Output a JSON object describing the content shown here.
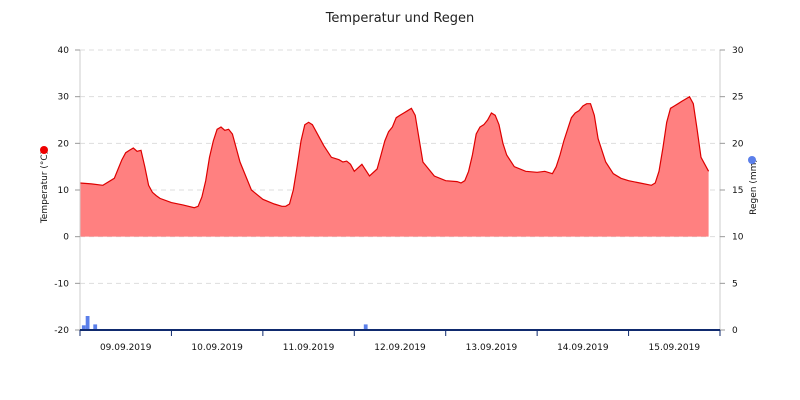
{
  "chart_data": {
    "type": "area",
    "title": "Temperatur und Regen",
    "y_left": {
      "label": "Temperatur (°C)",
      "min": -20,
      "max": 40,
      "ticks": [
        -20,
        -10,
        0,
        10,
        20,
        30,
        40
      ]
    },
    "y_right": {
      "label": "Regen (mm)",
      "min": 0,
      "max": 30,
      "ticks": [
        0,
        5,
        10,
        15,
        20,
        25,
        30
      ]
    },
    "x_ticks": [
      "09.09.2019",
      "10.09.2019",
      "11.09.2019",
      "12.09.2019",
      "13.09.2019",
      "14.09.2019",
      "15.09.2019"
    ],
    "grid": true,
    "colors": {
      "temperature_fill": "#ff8080",
      "temperature_line": "#dd0000",
      "temperature_marker": "#ee0000",
      "rain": "#5b7fea",
      "rain_marker": "#5b7fea",
      "axis": "#0f2a6e"
    },
    "series": [
      {
        "name": "Temperatur",
        "unit": "°C",
        "axis": "left",
        "hours": [
          0,
          3,
          6,
          9,
          10,
          11,
          12,
          13,
          14,
          15,
          16,
          17,
          18,
          19,
          20,
          21,
          24,
          27,
          30,
          31,
          32,
          33,
          34,
          35,
          36,
          37,
          38,
          39,
          40,
          42,
          45,
          48,
          51,
          53,
          54,
          55,
          56,
          57,
          58,
          59,
          60,
          61,
          62,
          63,
          64,
          66,
          68,
          69,
          70,
          71,
          72,
          74,
          76,
          78,
          79,
          80,
          81,
          82,
          83,
          84,
          85,
          86,
          87,
          88,
          90,
          93,
          96,
          99,
          100,
          101,
          102,
          103,
          104,
          105,
          106,
          107,
          108,
          109,
          110,
          111,
          112,
          114,
          117,
          120,
          122,
          124,
          125,
          126,
          127,
          128,
          129,
          130,
          131,
          132,
          133,
          134,
          135,
          136,
          138,
          140,
          142,
          144,
          147,
          150,
          151,
          152,
          153,
          154,
          155,
          156,
          157,
          158,
          159,
          160,
          161,
          162,
          163,
          165
        ],
        "values": [
          11.5,
          11.3,
          11.0,
          12.5,
          14.5,
          16.5,
          18.0,
          18.5,
          19.0,
          18.3,
          18.5,
          15.0,
          11.0,
          9.5,
          8.8,
          8.2,
          7.3,
          6.8,
          6.2,
          6.5,
          8.5,
          12.0,
          17.0,
          20.5,
          23.0,
          23.5,
          22.8,
          23.0,
          22.0,
          16.0,
          10.0,
          8.0,
          7.0,
          6.5,
          6.5,
          7.0,
          10.0,
          15.0,
          20.5,
          24.0,
          24.5,
          24.0,
          22.5,
          21.0,
          19.5,
          17.0,
          16.5,
          16.0,
          16.2,
          15.5,
          14.0,
          15.5,
          13.0,
          14.5,
          17.5,
          20.5,
          22.5,
          23.5,
          25.5,
          26.0,
          26.5,
          27.0,
          27.5,
          26.0,
          16.0,
          13.0,
          12.0,
          11.8,
          11.5,
          12.0,
          14.0,
          17.5,
          22.0,
          23.5,
          24.0,
          25.0,
          26.5,
          26.0,
          24.0,
          20.0,
          17.5,
          15.0,
          14.0,
          13.8,
          14.0,
          13.5,
          15.0,
          17.5,
          20.5,
          23.0,
          25.5,
          26.5,
          27.0,
          28.0,
          28.5,
          28.5,
          26.0,
          21.0,
          16.0,
          13.5,
          12.5,
          12.0,
          11.5,
          11.0,
          11.5,
          14.0,
          19.0,
          24.5,
          27.5,
          28.0,
          28.5,
          29.0,
          29.5,
          30.0,
          28.5,
          23.0,
          17.0,
          14.0
        ]
      },
      {
        "name": "Regen",
        "unit": "mm",
        "axis": "right",
        "hours": [
          1,
          2,
          4,
          75
        ],
        "values": [
          0.5,
          1.5,
          0.6,
          0.6
        ]
      }
    ]
  }
}
